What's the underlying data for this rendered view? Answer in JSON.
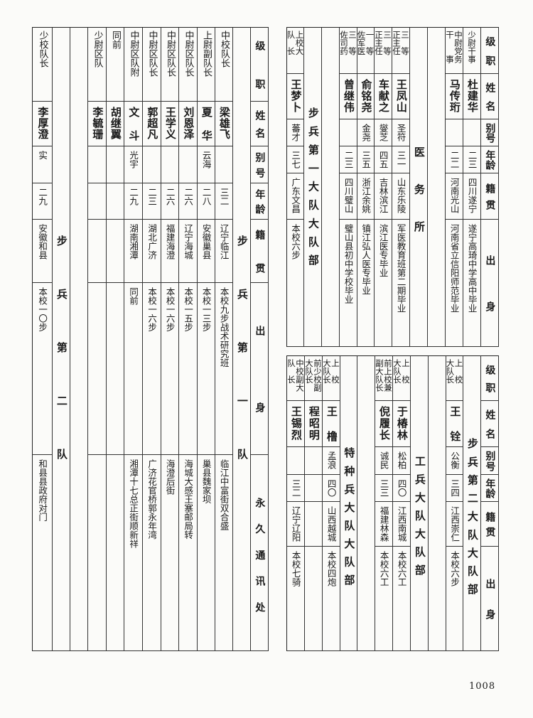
{
  "headers": {
    "rank": "级职",
    "name": "姓名",
    "alias": "别号",
    "age": "年龄",
    "native": "籍贯",
    "origin": "出身",
    "address": "永久通讯处"
  },
  "left_table": {
    "groups": [
      "步兵第一队",
      "步兵第二队"
    ],
    "people": [
      {
        "rank": [
          "中校队长"
        ],
        "name": "梁雄飞",
        "age": "三二",
        "native": "辽宁临江",
        "origin": "本校九步战术研究班",
        "address": "临江中富街双合盛"
      },
      {
        "rank": [
          "上尉副队长"
        ],
        "name": "夏华",
        "alias": "云海",
        "age": "二八",
        "native": "安徽巢县",
        "origin": "本校一三步",
        "address": "巢县魏家坝"
      },
      {
        "rank": [
          "中尉区队长"
        ],
        "name": "刘恩泽",
        "age": "二六",
        "native": "辽宁海城",
        "origin": "本校一五步",
        "address": "海城大感王塞邮局转"
      },
      {
        "rank": [
          "中尉区队长"
        ],
        "name": "王学义",
        "age": "二六",
        "native": "福建海澄",
        "origin": "本校一六步",
        "address": "海澄后街"
      },
      {
        "rank": [
          "中尉区队长"
        ],
        "name": "郭超凡",
        "age": "二三",
        "native": "湖北广济",
        "origin": "本校一六步",
        "address": "广济花官桥郭永年湾"
      },
      {
        "rank": [
          "中尉区队附"
        ],
        "name": "文斗",
        "alias": "光宇",
        "age": "二九",
        "native": "湖南湘潭",
        "origin": "同前",
        "address": "湘潭十七总正街顺新祥"
      },
      {
        "rank": [
          "同前"
        ],
        "name": "胡继翼"
      },
      {
        "rank": [
          "少尉区队"
        ],
        "name": "李毓珊"
      },
      {
        "rank": [
          "少校队长"
        ],
        "name": "李厚澄",
        "alias": "实",
        "age": "二九",
        "native": "安徽和县",
        "origin": "本校一〇步",
        "address": "和县县政府对门"
      }
    ]
  },
  "right_top": {
    "groups": [
      "步兵第一大队大队部",
      "医务所"
    ],
    "people": [
      {
        "rank": [
          "少尉干事"
        ],
        "name": "杜建华",
        "age": "二三",
        "native": "四川遂宁",
        "origin": "遂宁高琦中学高中毕业"
      },
      {
        "rank": [
          "中尉党务",
          "干　　事"
        ],
        "name": "马传珩",
        "age": "二二",
        "native": "河南光山",
        "origin": "河南省立信阳师范毕业"
      },
      {
        "rank": [
          "三　等",
          "正主任"
        ],
        "name": "王凤山",
        "alias": "圣符",
        "age": "三一",
        "native": "山东乐陵",
        "origin": "军医教育班第二期毕业"
      },
      {
        "rank": [
          "三　等",
          "正主任"
        ],
        "name": "车献之",
        "alias": "燮芝",
        "age": "四五",
        "native": "吉林滨江",
        "origin": "滨江医专毕业"
      },
      {
        "rank": [
          "一　等",
          "佐军医"
        ],
        "name": "俞铭尧",
        "alias": "金尧",
        "age": "三五",
        "native": "浙江余姚",
        "origin": "镇江弘人医专毕业"
      },
      {
        "rank": [
          "三　等",
          "佐司药"
        ],
        "name": "曾继伟",
        "age": "二三",
        "native": "四川璧山",
        "origin": "璧山县初中学校毕业"
      },
      {
        "rank": [
          "上校大",
          "队　长"
        ],
        "name": "王梦卜",
        "alias": "蕃才",
        "age": "三七",
        "native": "广东文昌",
        "origin": "本校六步"
      }
    ]
  },
  "right_bottom": {
    "groups": [
      "步兵第二大队大队部",
      "工兵大队大队部",
      "特种兵大队大队部"
    ],
    "people": [
      {
        "rank": [
          "上　校",
          "大队长"
        ],
        "name": "王铨",
        "alias": "公衡",
        "age": "三四",
        "native": "江西崇仁",
        "origin": "本校六步"
      },
      {
        "rank": [
          "上　校",
          "大队长"
        ],
        "name": "于椿林",
        "alias": "松柏",
        "age": "四〇",
        "native": "江西南城",
        "origin": "本校六工"
      },
      {
        "rank": [
          "前上校兼",
          "副大队长"
        ],
        "name": "倪履长",
        "alias": "诚民",
        "age": "三三",
        "native": "福建林森",
        "origin": "本校六工"
      },
      {
        "rank": [
          "上　校",
          "大队长"
        ],
        "name": "王橹",
        "alias": "孟浪",
        "age": "四〇",
        "native": "山西越城",
        "origin": "本校四炮"
      },
      {
        "rank": [
          "前少校副",
          "大队长"
        ],
        "name": "程昭明"
      },
      {
        "rank": [
          "中校副大",
          "队　长"
        ],
        "name": "王锡烈",
        "age": "三二",
        "native": "辽宁辽阳",
        "origin": "本校七骑"
      }
    ]
  },
  "page_number": "1008"
}
